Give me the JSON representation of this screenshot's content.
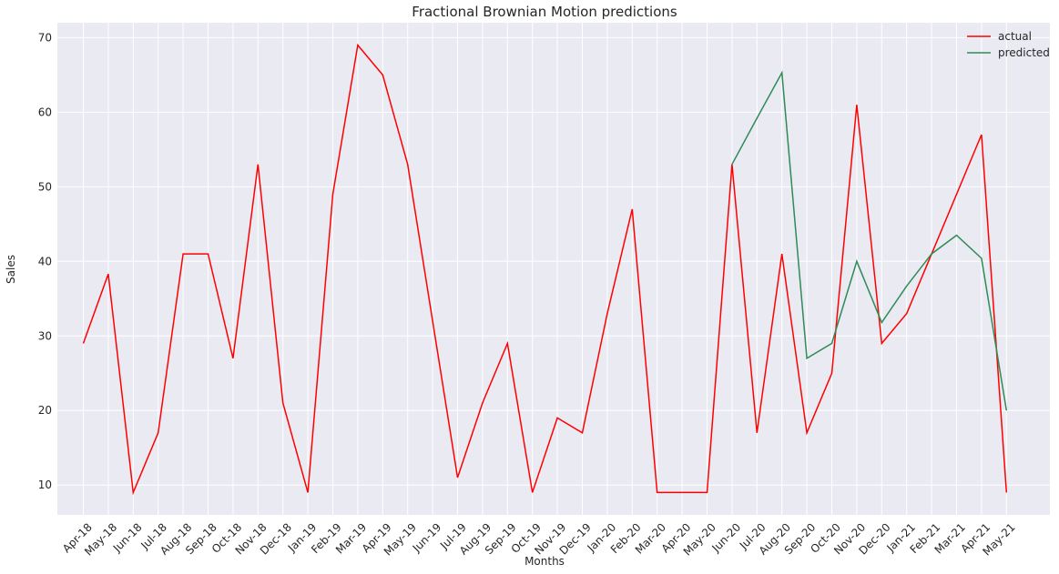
{
  "chart_data": {
    "type": "line",
    "title": "Fractional Brownian Motion predictions",
    "xlabel": "Months",
    "ylabel": "Sales",
    "categories": [
      "Apr-18",
      "May-18",
      "Jun-18",
      "Jul-18",
      "Aug-18",
      "Sep-18",
      "Oct-18",
      "Nov-18",
      "Dec-18",
      "Jan-19",
      "Feb-19",
      "Mar-19",
      "Apr-19",
      "May-19",
      "Jun-19",
      "Jul-19",
      "Aug-19",
      "Sep-19",
      "Oct-19",
      "Nov-19",
      "Dec-19",
      "Jan-20",
      "Feb-20",
      "Mar-20",
      "Apr-20",
      "May-20",
      "Jun-20",
      "Jul-20",
      "Aug-20",
      "Sep-20",
      "Oct-20",
      "Nov-20",
      "Dec-20",
      "Jan-21",
      "Feb-21",
      "Mar-21",
      "Apr-21",
      "May-21"
    ],
    "ylim": [
      6,
      72
    ],
    "yticks": [
      10,
      20,
      30,
      40,
      50,
      60,
      70
    ],
    "grid": true,
    "legend_position": "top-right",
    "series": [
      {
        "name": "actual",
        "color": "#ff0000",
        "values": [
          29,
          38.3,
          9,
          17,
          41,
          41,
          27,
          53,
          21,
          9,
          49,
          69,
          65,
          53,
          32,
          11,
          21,
          29,
          9,
          19,
          17,
          33,
          47,
          9,
          9,
          9,
          53,
          17,
          41,
          17,
          25,
          61,
          29,
          33,
          null,
          null,
          57,
          9
        ]
      },
      {
        "name": "predicted",
        "color": "#2e8b57",
        "values": [
          null,
          null,
          null,
          null,
          null,
          null,
          null,
          null,
          null,
          null,
          null,
          null,
          null,
          null,
          null,
          null,
          null,
          null,
          null,
          null,
          null,
          null,
          null,
          null,
          null,
          null,
          53,
          59.2,
          65.3,
          27,
          29,
          40,
          31.8,
          36.7,
          41,
          43.5,
          40.4,
          20
        ]
      }
    ]
  }
}
